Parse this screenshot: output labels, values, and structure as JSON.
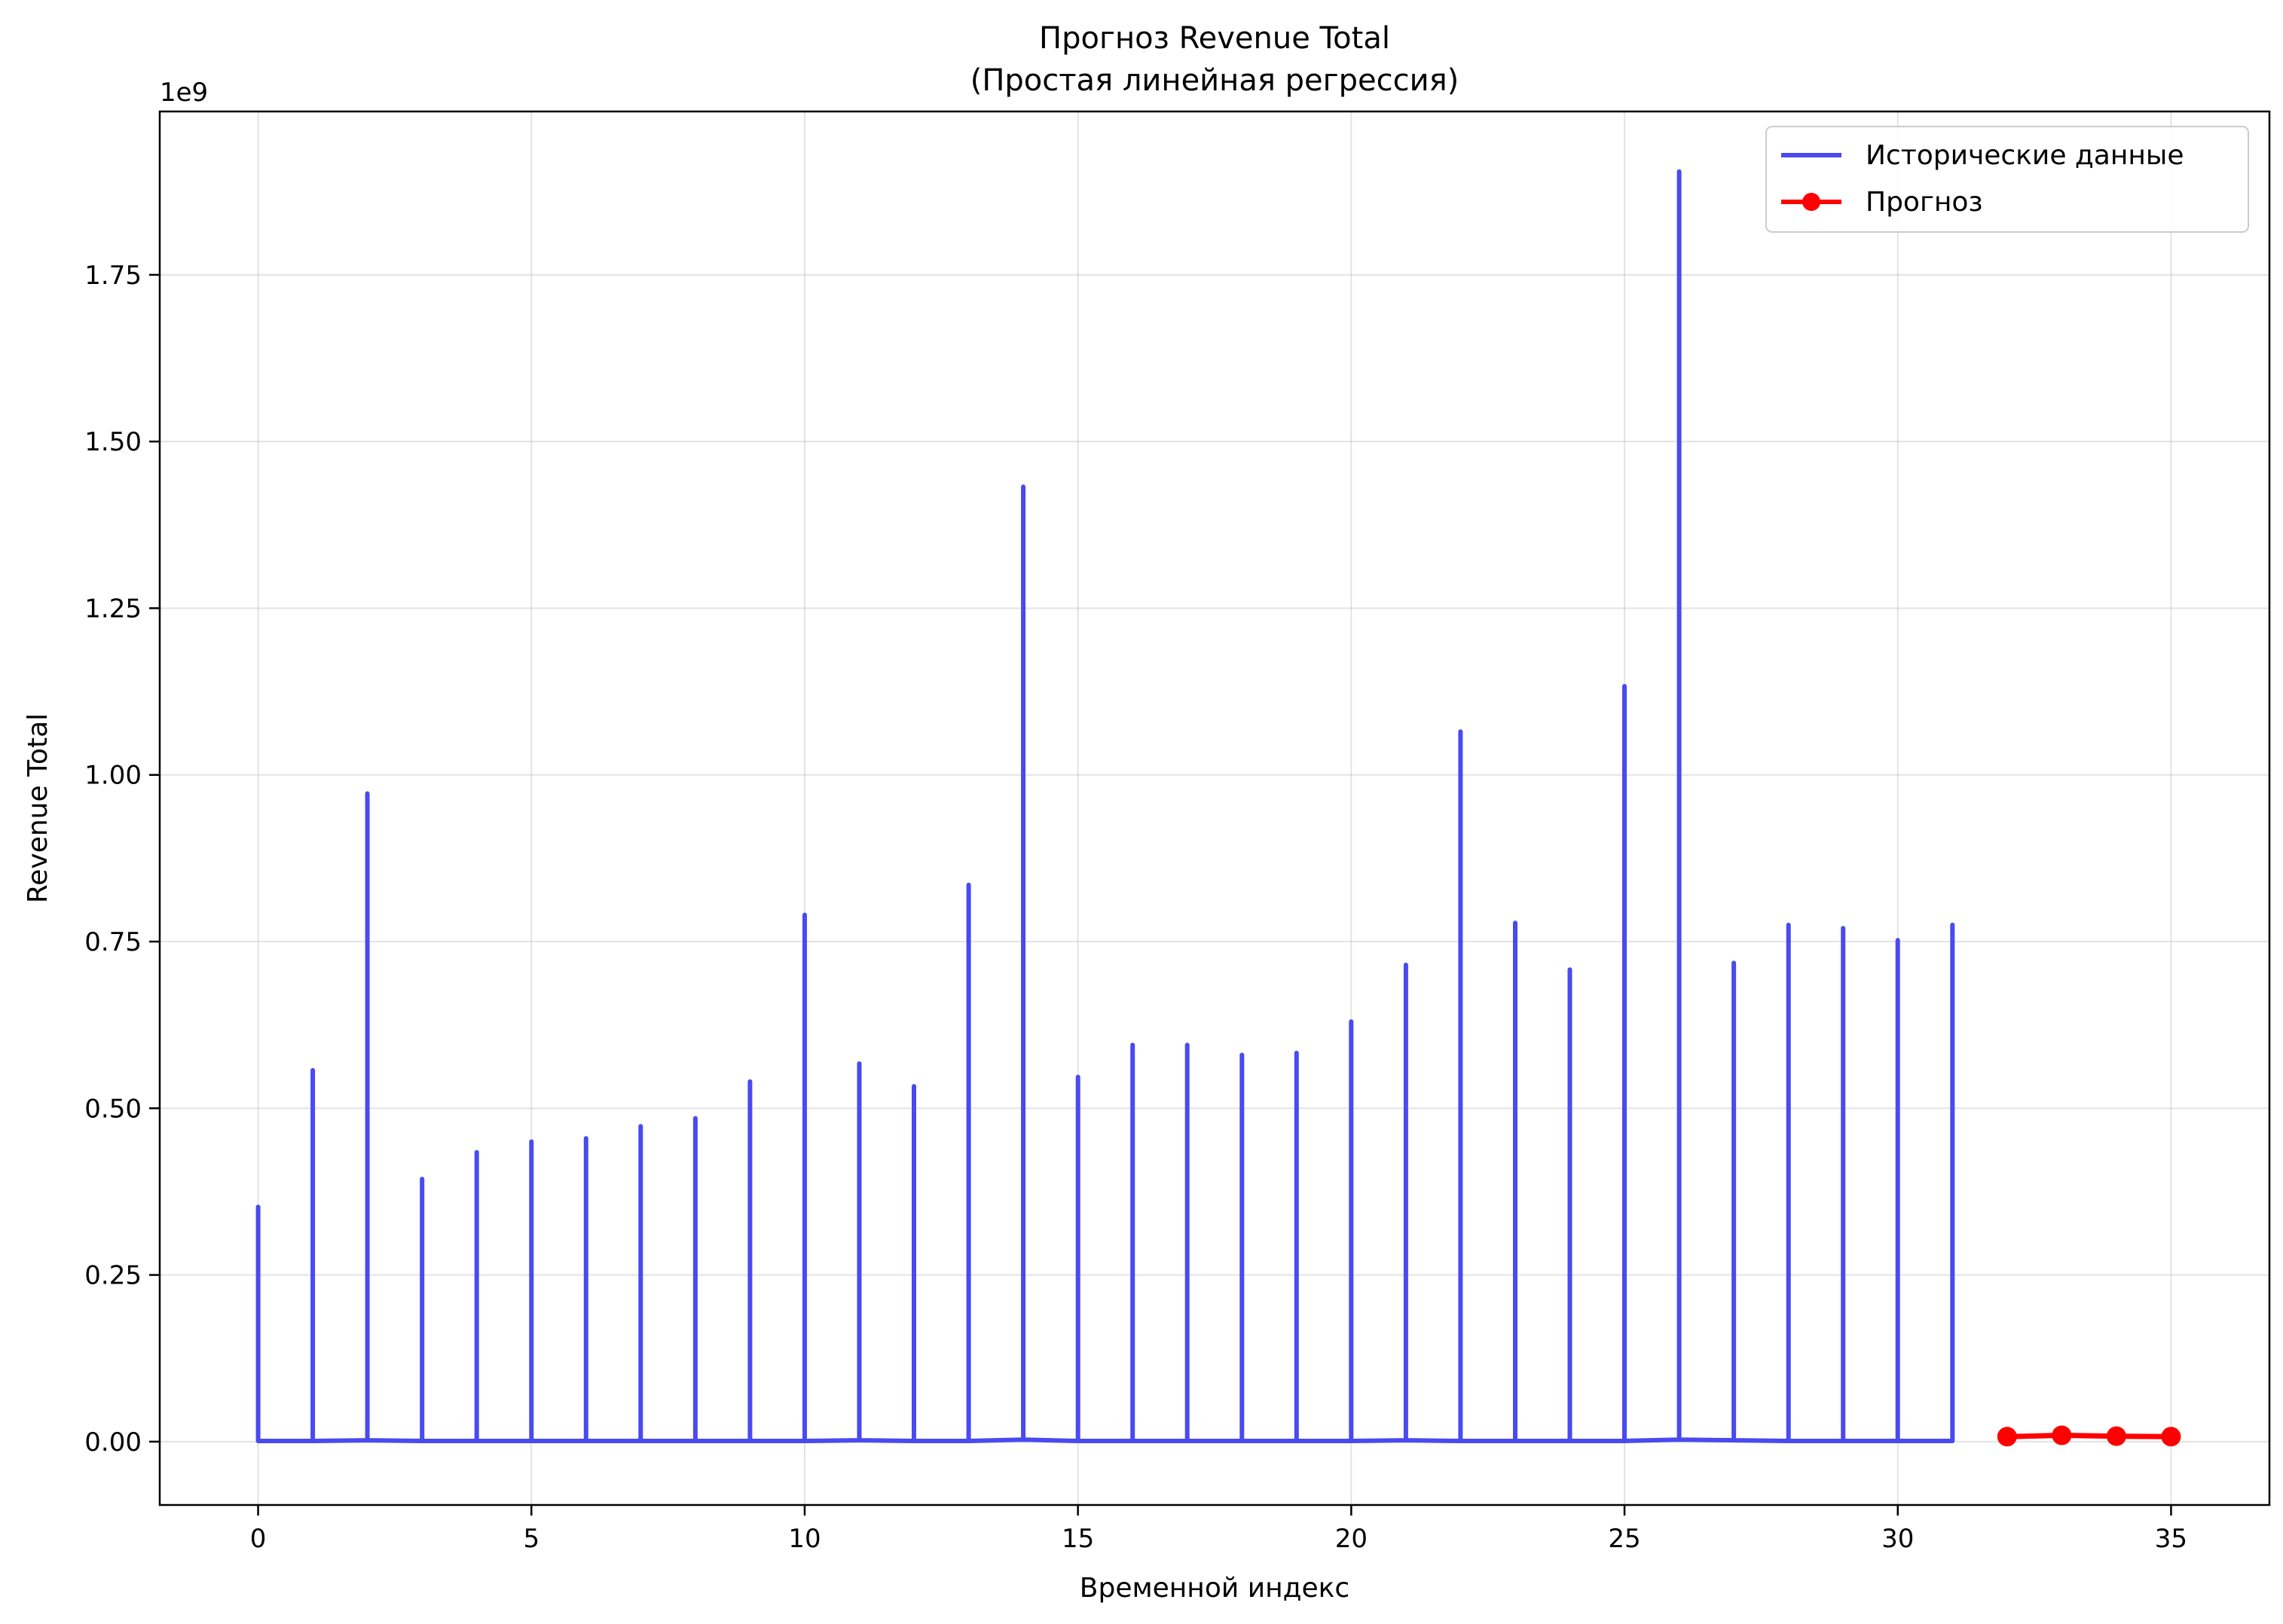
{
  "chart_data": {
    "type": "line",
    "title": "Прогноз Revenue Total",
    "subtitle": "(Простая линейная регрессия)",
    "xlabel": "Временной индекс",
    "ylabel": "Revenue Total",
    "y_offset_label": "1e9",
    "xlim": [
      -1.8,
      36.8
    ],
    "ylim": [
      -0.095,
      1.995
    ],
    "x_ticks": [
      0,
      5,
      10,
      15,
      20,
      25,
      30,
      35
    ],
    "x_tick_labels": [
      "0",
      "5",
      "10",
      "15",
      "20",
      "25",
      "30",
      "35"
    ],
    "y_ticks": [
      0.0,
      0.25,
      0.5,
      0.75,
      1.0,
      1.25,
      1.5,
      1.75
    ],
    "y_tick_labels": [
      "0.00",
      "0.25",
      "0.50",
      "0.75",
      "1.00",
      "1.25",
      "1.50",
      "1.75"
    ],
    "grid": true,
    "legend_position": "top-right",
    "series": [
      {
        "name": "Исторические данные",
        "color": "#4a4af0",
        "marker": "none",
        "peaks": [
          0.352,
          0.557,
          0.972,
          0.394,
          0.434,
          0.45,
          0.455,
          0.473,
          0.485,
          0.54,
          0.79,
          0.567,
          0.533,
          0.835,
          1.432,
          0.547,
          0.595,
          0.595,
          0.58,
          0.583,
          0.63,
          0.715,
          1.065,
          0.778,
          0.708,
          1.133,
          1.905,
          0.718,
          0.775,
          0.77,
          0.752,
          0.775
        ],
        "base": [
          0.001,
          0.001,
          0.002,
          0.001,
          0.001,
          0.001,
          0.001,
          0.001,
          0.001,
          0.001,
          0.001,
          0.002,
          0.001,
          0.001,
          0.003,
          0.001,
          0.001,
          0.001,
          0.001,
          0.001,
          0.001,
          0.002,
          0.001,
          0.001,
          0.001,
          0.001,
          0.003,
          0.002,
          0.001,
          0.001,
          0.001,
          0.001
        ]
      },
      {
        "name": "Прогноз",
        "color": "#ff0000",
        "marker": "circle",
        "x": [
          32,
          33,
          34,
          35
        ],
        "y": [
          0.0075,
          0.0095,
          0.0082,
          0.0075
        ]
      }
    ]
  }
}
